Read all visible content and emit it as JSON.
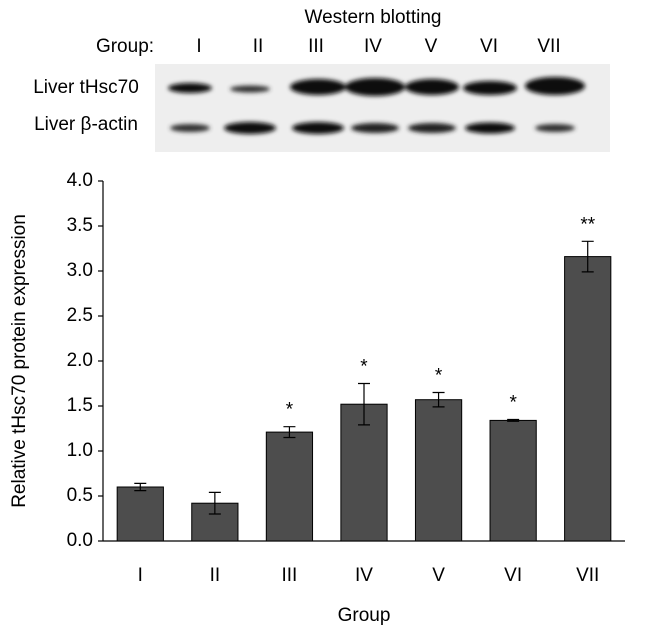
{
  "chart_data": {
    "type": "bar",
    "blot": {
      "title": "Western blotting",
      "lane_heading": "Group:",
      "lanes": [
        "I",
        "II",
        "III",
        "IV",
        "V",
        "VI",
        "VII"
      ],
      "rows": [
        "Liver tHsc70",
        "Liver β-actin"
      ]
    },
    "x_label": "Group",
    "y_label": "Relative tHsc70 protein expression",
    "categories": [
      "I",
      "II",
      "III",
      "IV",
      "V",
      "VI",
      "VII"
    ],
    "values": [
      0.6,
      0.42,
      1.21,
      1.52,
      1.57,
      1.34,
      3.16
    ],
    "errors": [
      0.04,
      0.12,
      0.06,
      0.23,
      0.08,
      0.01,
      0.17
    ],
    "significance": [
      null,
      null,
      "*",
      "*",
      "*",
      "*",
      "**"
    ],
    "color": "#4d4d4d",
    "ylim": [
      0,
      4
    ],
    "yticks": [
      {
        "value": 0,
        "label": "0.0"
      },
      0.5,
      {
        "value": 1,
        "label": "1.0"
      },
      1.5,
      {
        "value": 2,
        "label": "2.0"
      },
      2.5,
      {
        "value": 3,
        "label": "3.0"
      },
      3.5,
      {
        "value": 4,
        "label": "4.0"
      }
    ],
    "grid": false
  }
}
